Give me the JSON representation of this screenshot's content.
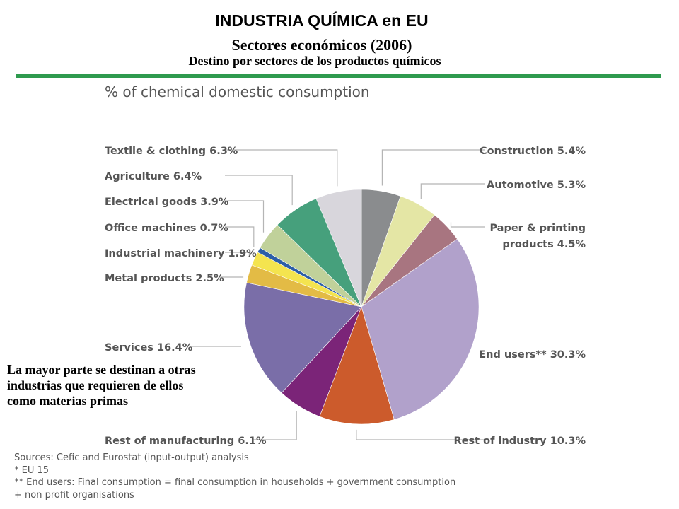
{
  "header": {
    "title": "INDUSTRIA QUÍMICA en EU",
    "subtitle": "Sectores económicos (2006)",
    "subtitle2": "Destino por sectores de los productos químicos"
  },
  "note": {
    "lines": [
      "La mayor parte se destinan a otras",
      "industrias que requieren de ellos",
      "como materias primas"
    ]
  },
  "sources": {
    "lines": [
      "Sources: Cefic and Eurostat (input-output) analysis",
      "* EU 15",
      "** End users: Final consumption = final consumption in households + government consumption",
      "+ non profit organisations"
    ]
  },
  "colors": {
    "accent_rule": "#2e9a4e"
  },
  "chart_data": {
    "type": "pie",
    "title": "% of  chemical domestic consumption",
    "slices": [
      {
        "name": "Construction",
        "label": "Construction 5.4%",
        "value": 5.4,
        "color": "#8a8c8e"
      },
      {
        "name": "Automotive",
        "label": "Automotive 5.3%",
        "value": 5.3,
        "color": "#e4e6a5"
      },
      {
        "name": "Paper & printing products",
        "label": "Paper & printing products 4.5%",
        "label_lines": [
          "Paper & printing",
          "products 4.5%"
        ],
        "value": 4.5,
        "color": "#a87580"
      },
      {
        "name": "End users**",
        "label": "End users** 30.3%",
        "value": 30.3,
        "color": "#b1a1cb"
      },
      {
        "name": "Rest of industry",
        "label": "Rest of industry 10.3%",
        "value": 10.3,
        "color": "#cc5b2c"
      },
      {
        "name": "Rest of manufacturing",
        "label": "Rest of manufacturing 6.1%",
        "value": 6.1,
        "color": "#7b2478"
      },
      {
        "name": "Services",
        "label": "Services 16.4%",
        "value": 16.4,
        "color": "#7a6ea8"
      },
      {
        "name": "Metal products",
        "label": "Metal products 2.5%",
        "value": 2.5,
        "color": "#e3bb45"
      },
      {
        "name": "Industrial machinery",
        "label": "Industrial machinery 1.9%",
        "value": 1.9,
        "color": "#f4e44f"
      },
      {
        "name": "Office machines",
        "label": "Office machines 0.7%",
        "value": 0.7,
        "color": "#2c5ea8"
      },
      {
        "name": "Electrical goods",
        "label": "Electrical goods 3.9%",
        "value": 3.9,
        "color": "#c0d19a"
      },
      {
        "name": "Agriculture",
        "label": "Agriculture 6.4%",
        "value": 6.4,
        "color": "#46a07c"
      },
      {
        "name": "Textile & clothing",
        "label": "Textile & clothing 6.3%",
        "value": 6.3,
        "color": "#d8d6dc"
      }
    ]
  }
}
